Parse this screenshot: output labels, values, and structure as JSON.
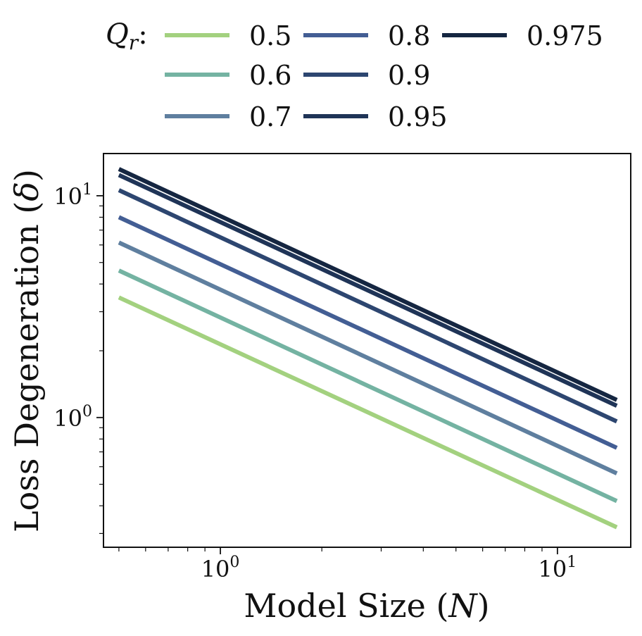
{
  "chart_data": {
    "type": "line",
    "x_scale": "log",
    "y_scale": "log",
    "xlabel_text": "Model Size (",
    "xlabel_var": "N",
    "xlabel_close": ")",
    "ylabel_text": "Loss Degeneration (",
    "ylabel_var": "δ",
    "ylabel_close": ")",
    "xlim": [
      0.45,
      16.5
    ],
    "ylim": [
      0.26,
      15.5
    ],
    "x_ticks": [
      {
        "value": 1,
        "base": "10",
        "exp": "0"
      },
      {
        "value": 10,
        "base": "10",
        "exp": "1"
      }
    ],
    "y_ticks": [
      {
        "value": 1,
        "base": "10",
        "exp": "0"
      },
      {
        "value": 10,
        "base": "10",
        "exp": "1"
      }
    ],
    "legend": {
      "title_var": "Q",
      "title_sub": "r",
      "title_suffix": ":",
      "position": "top"
    },
    "x": [
      0.5,
      15
    ],
    "series": [
      {
        "name": "0.5",
        "color": "#a3d17f",
        "values": [
          3.48,
          0.32
        ]
      },
      {
        "name": "0.6",
        "color": "#74b3a2",
        "values": [
          4.6,
          0.42
        ]
      },
      {
        "name": "0.7",
        "color": "#5f7f9f",
        "values": [
          6.15,
          0.56
        ]
      },
      {
        "name": "0.8",
        "color": "#435e94",
        "values": [
          8.0,
          0.73
        ]
      },
      {
        "name": "0.9",
        "color": "#2d4670",
        "values": [
          10.6,
          0.96
        ]
      },
      {
        "name": "0.95",
        "color": "#1f3457",
        "values": [
          12.4,
          1.13
        ]
      },
      {
        "name": "0.975",
        "color": "#152641",
        "values": [
          13.2,
          1.2
        ]
      }
    ]
  }
}
